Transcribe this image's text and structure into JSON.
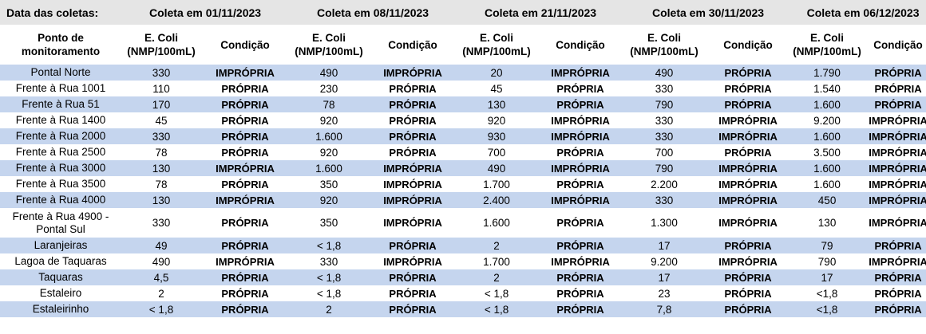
{
  "header": {
    "date_label": "Data das coletas:",
    "collections": [
      "Coleta em 01/11/2023",
      "Coleta em 08/11/2023",
      "Coleta em 21/11/2023",
      "Coleta em 30/11/2023",
      "Coleta em 06/12/2023"
    ],
    "point_header": "Ponto de monitoramento",
    "ecoli_header": "E. Coli (NMP/100mL)",
    "condition_header": "Condição"
  },
  "rows": [
    {
      "point": "Pontal Norte",
      "values": [
        "330",
        "IMPRÓPRIA",
        "490",
        "IMPRÓPRIA",
        "20",
        "IMPRÓPRIA",
        "490",
        "PRÓPRIA",
        "1.790",
        "PRÓPRIA"
      ]
    },
    {
      "point": "Frente à Rua 1001",
      "values": [
        "110",
        "PRÓPRIA",
        "230",
        "PRÓPRIA",
        "45",
        "PRÓPRIA",
        "330",
        "PRÓPRIA",
        "1.540",
        "PRÓPRIA"
      ]
    },
    {
      "point": "Frente à Rua 51",
      "values": [
        "170",
        "PRÓPRIA",
        "78",
        "PRÓPRIA",
        "130",
        "PRÓPRIA",
        "790",
        "PRÓPRIA",
        "1.600",
        "PRÓPRIA"
      ]
    },
    {
      "point": "Frente à Rua 1400",
      "values": [
        "45",
        "PRÓPRIA",
        "920",
        "PRÓPRIA",
        "920",
        "IMPRÓPRIA",
        "330",
        "IMPRÓPRIA",
        "9.200",
        "IMPRÓPRIA"
      ]
    },
    {
      "point": "Frente à Rua 2000",
      "values": [
        "330",
        "PRÓPRIA",
        "1.600",
        "PRÓPRIA",
        "930",
        "IMPRÓPRIA",
        "330",
        "IMPRÓPRIA",
        "1.600",
        "IMPRÓPRIA"
      ]
    },
    {
      "point": "Frente à Rua 2500",
      "values": [
        "78",
        "PRÓPRIA",
        "920",
        "PRÓPRIA",
        "700",
        "PRÓPRIA",
        "700",
        "PRÓPRIA",
        "3.500",
        "IMPRÓPRIA"
      ]
    },
    {
      "point": "Frente à Rua 3000",
      "values": [
        "130",
        "IMPRÓPRIA",
        "1.600",
        "IMPRÓPRIA",
        "490",
        "IMPRÓPRIA",
        "790",
        "IMPRÓPRIA",
        "1.600",
        "IMPRÓPRIA"
      ]
    },
    {
      "point": "Frente à Rua 3500",
      "values": [
        "78",
        "PRÓPRIA",
        "350",
        "IMPRÓPRIA",
        "1.700",
        "PRÓPRIA",
        "2.200",
        "IMPRÓPRIA",
        "1.600",
        "IMPRÓPRIA"
      ]
    },
    {
      "point": "Frente à Rua 4000",
      "values": [
        "130",
        "IMPRÓPRIA",
        "920",
        "IMPRÓPRIA",
        "2.400",
        "IMPRÓPRIA",
        "330",
        "IMPRÓPRIA",
        "450",
        "IMPRÓPRIA"
      ]
    },
    {
      "point": "Frente à Rua 4900 - Pontal Sul",
      "values": [
        "330",
        "PRÓPRIA",
        "350",
        "IMPRÓPRIA",
        "1.600",
        "PRÓPRIA",
        "1.300",
        "IMPRÓPRIA",
        "130",
        "IMPRÓPRIA"
      ]
    },
    {
      "point": "Laranjeiras",
      "values": [
        "49",
        "PRÓPRIA",
        "< 1,8",
        "PRÓPRIA",
        "2",
        "PRÓPRIA",
        "17",
        "PRÓPRIA",
        "79",
        "PRÓPRIA"
      ]
    },
    {
      "point": "Lagoa de Taquaras",
      "values": [
        "490",
        "IMPRÓPRIA",
        "330",
        "IMPRÓPRIA",
        "1.700",
        "IMPRÓPRIA",
        "9.200",
        "IMPRÓPRIA",
        "790",
        "IMPRÓPRIA"
      ]
    },
    {
      "point": "Taquaras",
      "values": [
        "4,5",
        "PRÓPRIA",
        "< 1,8",
        "PRÓPRIA",
        "2",
        "PRÓPRIA",
        "17",
        "PRÓPRIA",
        "17",
        "PRÓPRIA"
      ]
    },
    {
      "point": "Estaleiro",
      "values": [
        "2",
        "PRÓPRIA",
        "< 1,8",
        "PRÓPRIA",
        "< 1,8",
        "PRÓPRIA",
        "23",
        "PRÓPRIA",
        "<1,8",
        "PRÓPRIA"
      ]
    },
    {
      "point": "Estaleirinho",
      "values": [
        "< 1,8",
        "PRÓPRIA",
        "2",
        "PRÓPRIA",
        "< 1,8",
        "PRÓPRIA",
        "7,8",
        "PRÓPRIA",
        "<1,8",
        "PRÓPRIA"
      ]
    }
  ]
}
